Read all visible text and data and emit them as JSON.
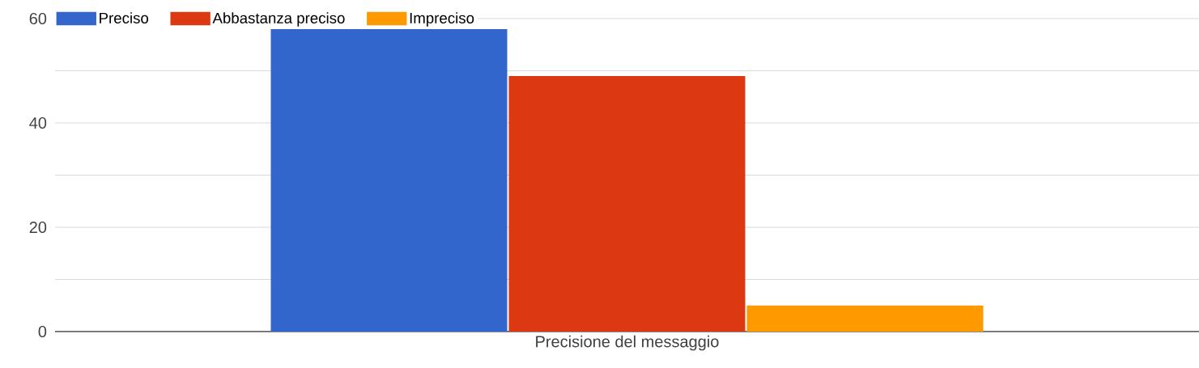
{
  "chart_data": {
    "type": "bar",
    "categories": [
      "Precisione del messaggio"
    ],
    "series": [
      {
        "name": "Preciso",
        "color": "#3366cc",
        "values": [
          58
        ]
      },
      {
        "name": "Abbastanza preciso",
        "color": "#dc3912",
        "values": [
          49
        ]
      },
      {
        "name": "Impreciso",
        "color": "#ff9900",
        "values": [
          5
        ]
      }
    ],
    "ylim": [
      0,
      60
    ],
    "yticks": [
      0,
      {
        "value": 10,
        "label": null
      },
      20,
      {
        "value": 30,
        "label": null
      },
      40,
      {
        "value": 50,
        "label": null
      },
      60
    ],
    "grid": "y",
    "legend": "top left"
  }
}
